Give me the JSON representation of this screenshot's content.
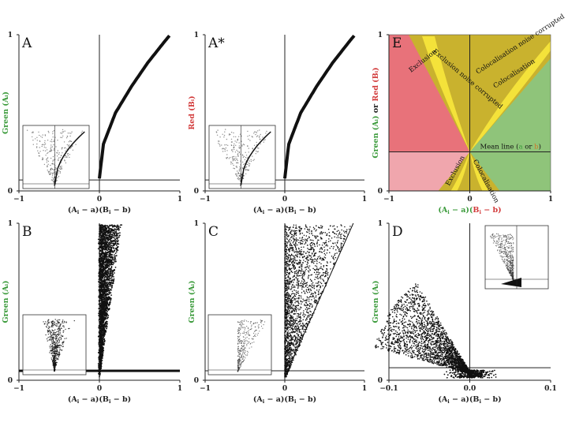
{
  "figure": {
    "panels": [
      {
        "label": "A",
        "ylabel": "Green (Aᵢ)",
        "ylabel_color": "#3a9a3a",
        "xlabel_parts": [
          "(A",
          "i",
          " − a)(B",
          "i",
          " − b)"
        ],
        "x_ticks": [
          "−1",
          "0",
          "1"
        ],
        "y_ticks": [
          "0",
          "1"
        ]
      },
      {
        "label": "A*",
        "ylabel": "Red (Bᵢ)",
        "ylabel_color": "#d23a3a",
        "xlabel_parts": [
          "(A",
          "i",
          " − a)(B",
          "i",
          " − b)"
        ],
        "x_ticks": [
          "−1",
          "0",
          "1"
        ],
        "y_ticks": [
          "0",
          "1"
        ]
      },
      {
        "label": "E",
        "ylabel_parts": [
          "Green (Aᵢ)",
          " or ",
          "Red (Bᵢ)"
        ],
        "ylabel_colors": [
          "#3a9a3a",
          "#222222",
          "#d23a3a"
        ],
        "xlabel_parts": [
          "(A",
          "i",
          " − a)(",
          "B",
          "i",
          " − b)"
        ],
        "x_ticks": [
          "−1",
          "0",
          "1"
        ],
        "y_ticks": [
          "0",
          "1"
        ],
        "annotations": {
          "exclusion_noise": "Exclusion noise corrupted",
          "exclusion": "Exclusion",
          "colocalisation_noise": "Colocalisation noise corrupted",
          "colocalisation": "Colocalisation",
          "exclusion_low": "Exclusion",
          "colocalisation_low": "Colocalisation",
          "mean_line_prefix": "Mean line (",
          "mean_a": "a",
          "mean_or": " or ",
          "mean_b": "b",
          "mean_line_suffix": ")"
        }
      },
      {
        "label": "B",
        "ylabel": "Green (Aᵢ)",
        "ylabel_color": "#3a9a3a",
        "xlabel_parts": [
          "(A",
          "i",
          " − a)(B",
          "i",
          " − b)"
        ],
        "x_ticks": [
          "−1",
          "0",
          "1"
        ],
        "y_ticks": [
          "0",
          "1"
        ]
      },
      {
        "label": "C",
        "ylabel": "Green (Aᵢ)",
        "ylabel_color": "#3a9a3a",
        "xlabel_parts": [
          "(A",
          "i",
          " − a)(B",
          "i",
          " − b)"
        ],
        "x_ticks": [
          "−1",
          "0",
          "1"
        ],
        "y_ticks": [
          "0",
          "1"
        ]
      },
      {
        "label": "D",
        "ylabel": "Green (Aᵢ)",
        "ylabel_color": "#3a9a3a",
        "xlabel_parts": [
          "(A",
          "i",
          " − a)(B",
          "i",
          " − b)"
        ],
        "x_ticks": [
          "−0.1",
          "0.0",
          "0.1"
        ],
        "y_ticks": [
          "0",
          "1"
        ]
      }
    ],
    "colors": {
      "ink": "#111111",
      "exclusion_red": "#e8727a",
      "exclusion_red_light": "#f0a6ad",
      "colocalisation_green": "#8fc47a",
      "noise_olive": "#c9b22e",
      "band_yellow": "#f4e23a",
      "mean_b_color": "#d2762a"
    }
  },
  "chart_data": [
    {
      "type": "scatter",
      "panel": "A",
      "xlim": [
        -1,
        1
      ],
      "ylim": [
        0,
        1
      ],
      "curve": [
        {
          "x": 0,
          "y": 0.08
        },
        {
          "x": 0.05,
          "y": 0.3
        },
        {
          "x": 0.2,
          "y": 0.5
        },
        {
          "x": 0.4,
          "y": 0.67
        },
        {
          "x": 0.6,
          "y": 0.82
        },
        {
          "x": 0.8,
          "y": 0.95
        },
        {
          "x": 0.88,
          "y": 1.0
        }
      ],
      "mean_y": 0.07,
      "has_inset": true
    },
    {
      "type": "scatter",
      "panel": "A*",
      "xlim": [
        -1,
        1
      ],
      "ylim": [
        0,
        1
      ],
      "curve": [
        {
          "x": 0,
          "y": 0.08
        },
        {
          "x": 0.05,
          "y": 0.3
        },
        {
          "x": 0.2,
          "y": 0.5
        },
        {
          "x": 0.4,
          "y": 0.67
        },
        {
          "x": 0.6,
          "y": 0.82
        },
        {
          "x": 0.8,
          "y": 0.95
        },
        {
          "x": 0.88,
          "y": 1.0
        }
      ],
      "mean_y": 0.07,
      "has_inset": true
    },
    {
      "type": "area",
      "panel": "E",
      "xlim": [
        -1,
        1
      ],
      "ylim": [
        0,
        1
      ],
      "mean_y": 0.25,
      "regions": [
        "Exclusion",
        "Exclusion noise corrupted",
        "Colocalisation",
        "Colocalisation noise corrupted"
      ]
    },
    {
      "type": "scatter",
      "panel": "B",
      "xlim": [
        -1,
        1
      ],
      "ylim": [
        0,
        1
      ],
      "mean_y": 0.06,
      "slope_max": 3.6,
      "slope_min": -30,
      "has_inset": true
    },
    {
      "type": "scatter",
      "panel": "C",
      "xlim": [
        -1,
        1
      ],
      "ylim": [
        0,
        1
      ],
      "mean_y": 0.06,
      "slope_min": 1.1,
      "has_inset": true
    },
    {
      "type": "scatter",
      "panel": "D",
      "xlim": [
        -0.1,
        0.1
      ],
      "ylim": [
        0,
        1
      ],
      "mean_y": 0.08,
      "has_inset": true
    }
  ]
}
